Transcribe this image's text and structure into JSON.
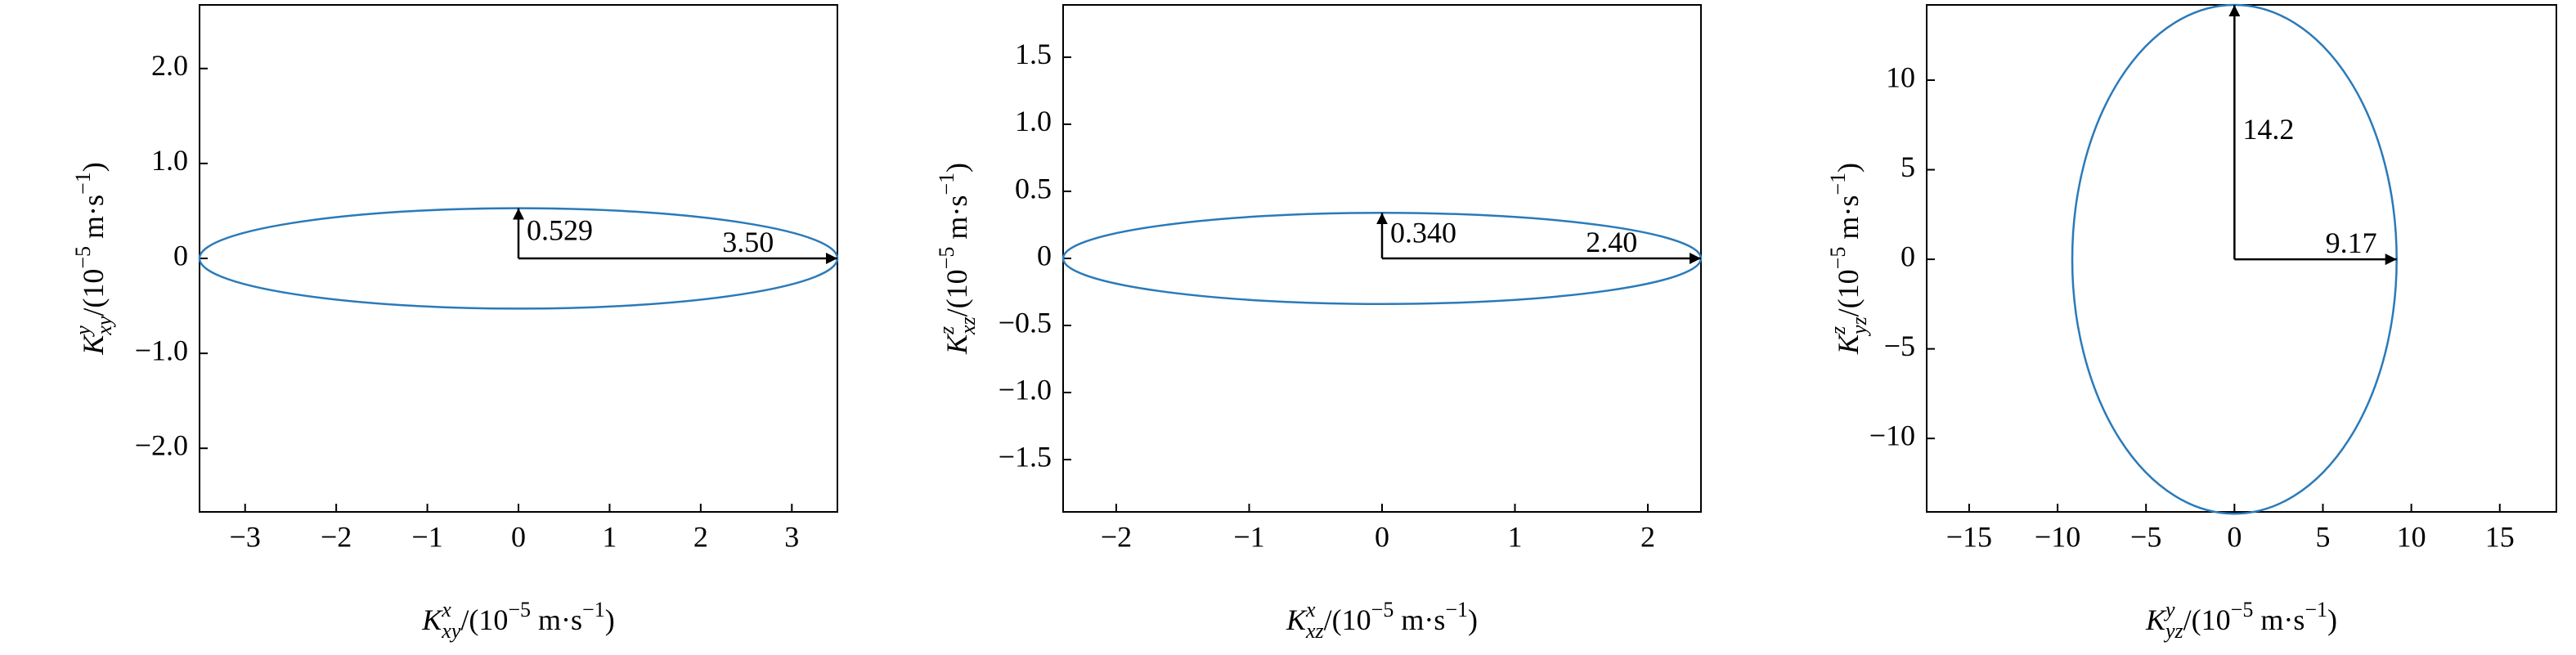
{
  "chart_data": [
    {
      "type": "ellipse",
      "color": "#2a7ab9",
      "values": [
        3.5,
        0.529
      ],
      "value_labels": [
        "3.50",
        "0.529"
      ],
      "xlim": [
        -3.5,
        3.5
      ],
      "ylim": [
        -2.67,
        2.67
      ],
      "xticks": [
        {
          "value": -3,
          "label": "−3"
        },
        {
          "value": -2,
          "label": "−2"
        },
        {
          "value": -1,
          "label": "−1"
        },
        0,
        1,
        2,
        3
      ],
      "yticks": [
        {
          "value": -2,
          "label": "−2.0"
        },
        {
          "value": -1,
          "label": "−1.0"
        },
        0,
        {
          "value": 1,
          "label": "1.0"
        },
        {
          "value": 2,
          "label": "2.0"
        }
      ],
      "xlabel": [
        {
          "text": "K",
          "italic": true
        },
        {
          "text": "x",
          "italic": true,
          "sup": true
        },
        {
          "text": "xy",
          "italic": true,
          "sub": true
        },
        {
          "text": "/(10"
        },
        {
          "text": "−5",
          "sup": true
        },
        {
          "text": " m·s"
        },
        {
          "text": "−1",
          "sup": true
        },
        {
          "text": ")"
        }
      ],
      "ylabel": [
        {
          "text": "K",
          "italic": true
        },
        {
          "text": "y",
          "italic": true,
          "sup": true
        },
        {
          "text": "xy",
          "italic": true,
          "sub": true
        },
        {
          "text": "/(10"
        },
        {
          "text": "−5",
          "sup": true
        },
        {
          "text": " m·s"
        },
        {
          "text": "−1",
          "sup": true
        },
        {
          "text": ")"
        }
      ]
    },
    {
      "type": "ellipse",
      "color": "#2a7ab9",
      "values": [
        2.4,
        0.34
      ],
      "value_labels": [
        "2.40",
        "0.340"
      ],
      "xlim": [
        -2.4,
        2.4
      ],
      "ylim": [
        -1.89,
        1.89
      ],
      "xticks": [
        {
          "value": -2,
          "label": "−2"
        },
        {
          "value": -1,
          "label": "−1"
        },
        0,
        1,
        2
      ],
      "yticks": [
        {
          "value": -1.5,
          "label": "−1.5"
        },
        {
          "value": -1,
          "label": "−1.0"
        },
        {
          "value": -0.5,
          "label": "−0.5"
        },
        0,
        0.5,
        {
          "value": 1,
          "label": "1.0"
        },
        1.5
      ],
      "xlabel": [
        {
          "text": "K",
          "italic": true
        },
        {
          "text": "x",
          "italic": true,
          "sup": true
        },
        {
          "text": "xz",
          "italic": true,
          "sub": true
        },
        {
          "text": "/(10"
        },
        {
          "text": "−5",
          "sup": true
        },
        {
          "text": " m·s"
        },
        {
          "text": "−1",
          "sup": true
        },
        {
          "text": ")"
        }
      ],
      "ylabel": [
        {
          "text": "K",
          "italic": true
        },
        {
          "text": "z",
          "italic": true,
          "sup": true
        },
        {
          "text": "xz",
          "italic": true,
          "sub": true
        },
        {
          "text": "/(10"
        },
        {
          "text": "−5",
          "sup": true
        },
        {
          "text": " m·s"
        },
        {
          "text": "−1",
          "sup": true
        },
        {
          "text": ")"
        }
      ]
    },
    {
      "type": "ellipse",
      "color": "#2a7ab9",
      "values": [
        9.17,
        14.2
      ],
      "xlim": [
        -17.4,
        18.2
      ],
      "ylim": [
        -14.1,
        14.2
      ],
      "xticks": [
        {
          "value": -15,
          "label": "−15"
        },
        {
          "value": -10,
          "label": "−10"
        },
        {
          "value": -5,
          "label": "−5"
        },
        0,
        5,
        10,
        15
      ],
      "yticks": [
        {
          "value": -10,
          "label": "−10"
        },
        {
          "value": -5,
          "label": "−5"
        },
        0,
        5,
        10
      ],
      "xlabel": [
        {
          "text": "K",
          "italic": true
        },
        {
          "text": "y",
          "italic": true,
          "sup": true
        },
        {
          "text": "yz",
          "italic": true,
          "sub": true
        },
        {
          "text": "/(10"
        },
        {
          "text": "−5",
          "sup": true
        },
        {
          "text": " m·s"
        },
        {
          "text": "−1",
          "sup": true
        },
        {
          "text": ")"
        }
      ],
      "ylabel": [
        {
          "text": "K",
          "italic": true
        },
        {
          "text": "z",
          "italic": true,
          "sup": true
        },
        {
          "text": "yz",
          "italic": true,
          "sub": true
        },
        {
          "text": "/(10"
        },
        {
          "text": "−5",
          "sup": true
        },
        {
          "text": " m·s"
        },
        {
          "text": "−1",
          "sup": true
        },
        {
          "text": ")"
        }
      ]
    }
  ]
}
